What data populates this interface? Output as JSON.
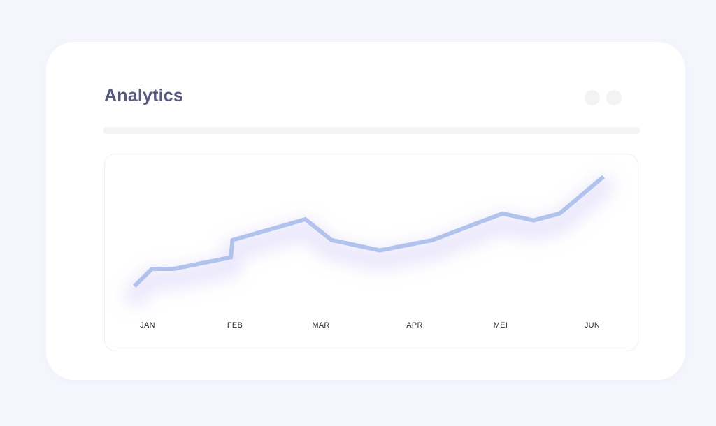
{
  "card": {
    "title": "Analytics"
  },
  "colors": {
    "background": "#f4f5fd",
    "title": "#575a7b",
    "line": "#b1c3ec",
    "glow": "#d8d3f7"
  },
  "chart_data": {
    "type": "line",
    "title": "",
    "xlabel": "",
    "ylabel": "",
    "grid": false,
    "x_ticks": [
      "JAN",
      "FEB",
      "MAR",
      "APR",
      "MEI",
      "JUN"
    ],
    "ylim": [
      0,
      100
    ],
    "series": [
      {
        "values": [
          {
            "x": -0.15,
            "y": 5
          },
          {
            "x": 0.05,
            "y": 20
          },
          {
            "x": 0.3,
            "y": 20
          },
          {
            "x": 0.95,
            "y": 30
          },
          {
            "x": 0.97,
            "y": 45
          },
          {
            "x": 1.8,
            "y": 63
          },
          {
            "x": 2.1,
            "y": 45
          },
          {
            "x": 2.65,
            "y": 36
          },
          {
            "x": 3.25,
            "y": 45
          },
          {
            "x": 4.05,
            "y": 68
          },
          {
            "x": 4.4,
            "y": 62
          },
          {
            "x": 4.7,
            "y": 68
          },
          {
            "x": 5.2,
            "y": 100
          }
        ]
      }
    ]
  }
}
